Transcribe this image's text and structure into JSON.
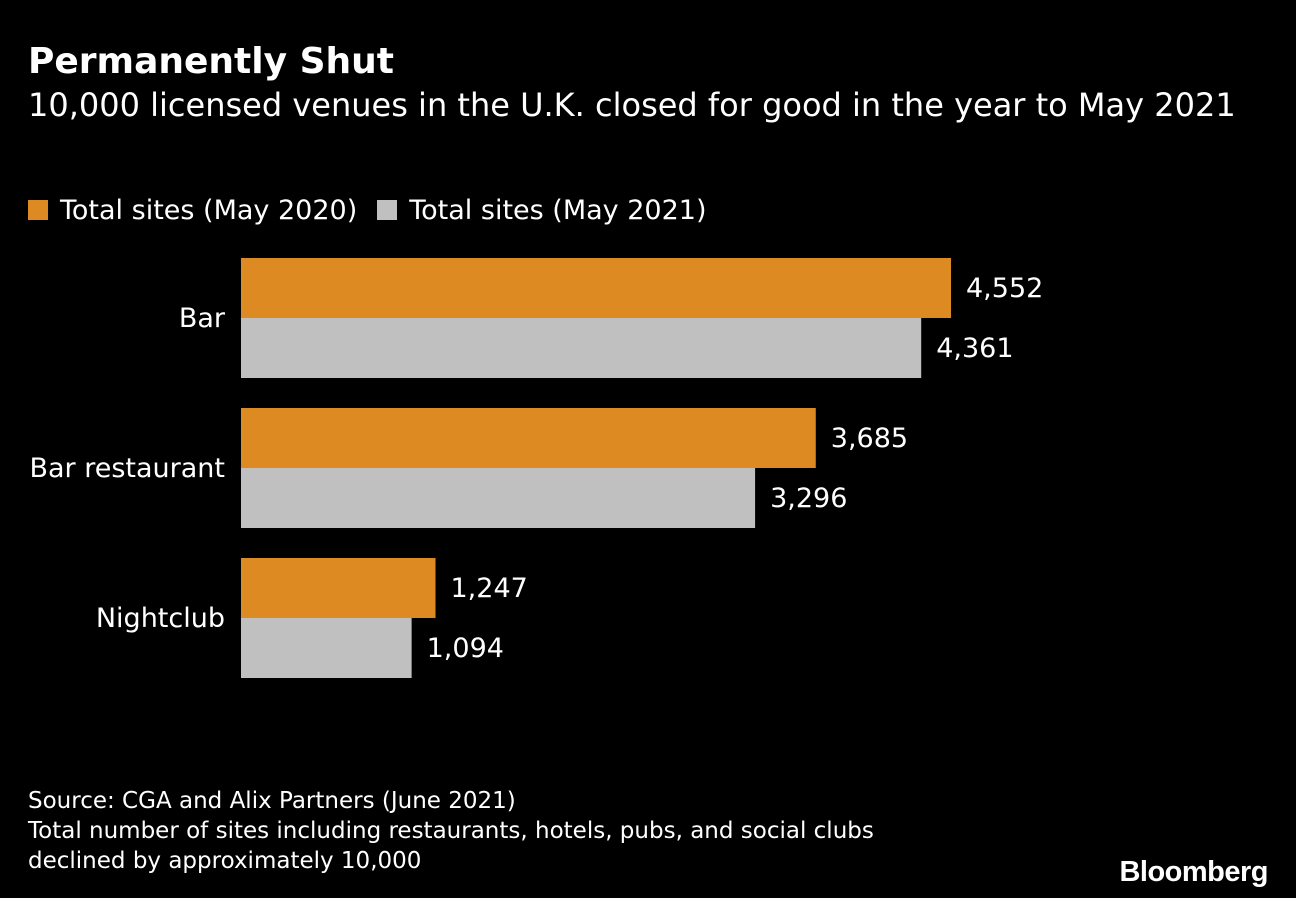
{
  "header": {
    "title": "Permanently Shut",
    "subtitle": "10,000 licensed venues in the U.K. closed for good in the year to May 2021"
  },
  "chart_data": {
    "type": "bar",
    "orientation": "horizontal",
    "categories": [
      "Bar",
      "Bar restaurant",
      "Nightclub"
    ],
    "series": [
      {
        "name": "Total sites (May 2020)",
        "values": [
          4552,
          3685,
          1247
        ],
        "labels": [
          "4,552",
          "3,685",
          "1,247"
        ],
        "color": "#de8a22"
      },
      {
        "name": "Total sites (May 2021)",
        "values": [
          4361,
          3296,
          1094
        ],
        "labels": [
          "4,361",
          "3,296",
          "1,094"
        ],
        "color": "#c0c0c0"
      }
    ],
    "xlim": [
      0,
      4552
    ],
    "grid": false,
    "legend_position": "top-left"
  },
  "footer": {
    "source": "Source: CGA and Alix Partners (June 2021)",
    "note_line1": "Total number of sites including restaurants, hotels, pubs, and social clubs",
    "note_line2": "declined by approximately 10,000",
    "logo": "Bloomberg"
  }
}
